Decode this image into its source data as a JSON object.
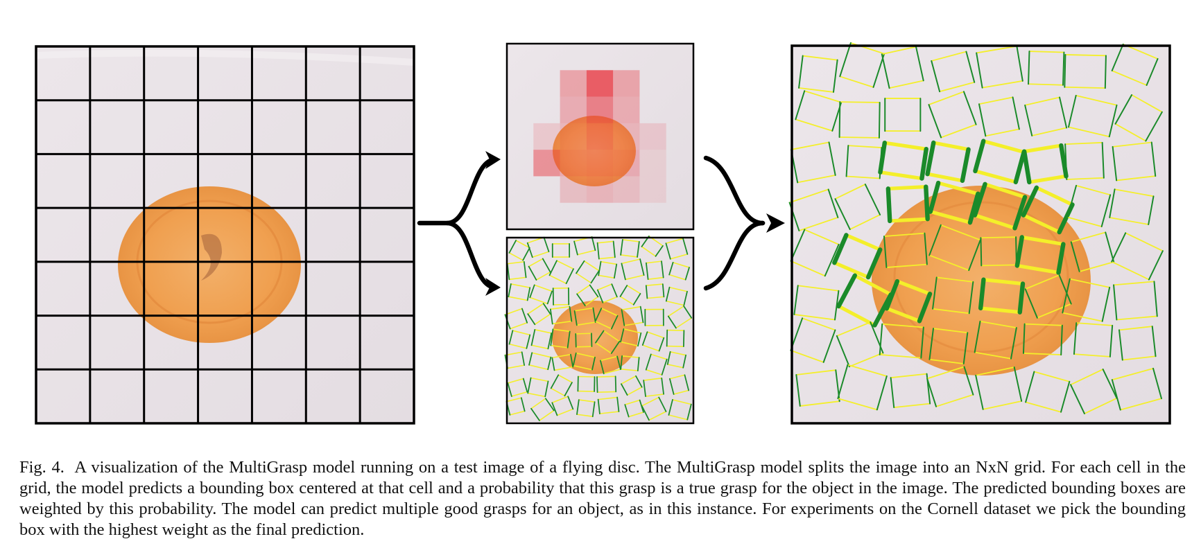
{
  "figure": {
    "caption_label": "Fig. 4.",
    "caption_text": "A visualization of the MultiGrasp model running on a test image of a flying disc. The MultiGrasp model splits the image into an NxN grid. For each cell in the grid, the model predicts a bounding box centered at that cell and a probability that this grasp is a true grasp for the object in the image. The predicted bounding boxes are weighted by this probability. The model can predict multiple good grasps for an object, as in this instance. For experiments on the Cornell dataset we pick the bounding box with the highest weight as the final prediction.",
    "grid_size": 7,
    "colors": {
      "grid_line": "#000000",
      "heatmap": "#e8303a",
      "grasp_green": "#1a8a2a",
      "grasp_yellow": "#f4ef2a",
      "disc": "#f0a050"
    }
  }
}
